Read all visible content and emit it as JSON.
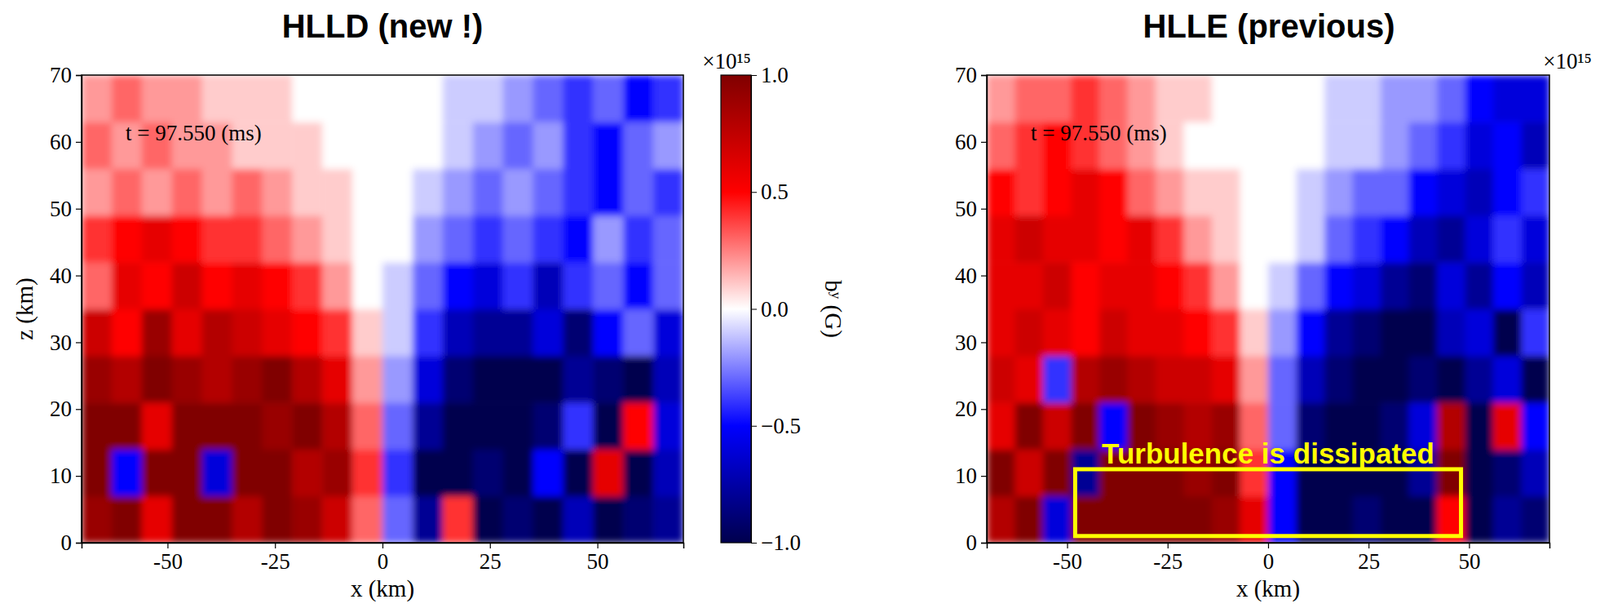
{
  "chart_data": [
    {
      "type": "heatmap",
      "title": "HLLD (new !)",
      "time_label": "t = 97.550 (ms)",
      "x_label": "x (km)",
      "y_label": "z (km)",
      "xlim": [
        -70,
        70
      ],
      "xticks": [
        -50,
        -25,
        0,
        25,
        50
      ],
      "ylim": [
        0,
        70
      ],
      "yticks": [
        0,
        10,
        20,
        30,
        40,
        50,
        60,
        70
      ],
      "x": [
        -66.5,
        -59.5,
        -52.5,
        -45.5,
        -38.5,
        -31.5,
        -24.5,
        -17.5,
        -10.5,
        -3.5,
        3.5,
        10.5,
        17.5,
        24.5,
        31.5,
        38.5,
        45.5,
        52.5,
        59.5,
        66.5
      ],
      "y": [
        3.5,
        10.5,
        17.5,
        24.5,
        31.5,
        38.5,
        45.5,
        52.5,
        59.5,
        66.5
      ],
      "cells": [
        [
          0.9,
          1.0,
          0.6,
          1.0,
          1.0,
          0.8,
          1.0,
          0.9,
          0.7,
          0.3,
          -0.3,
          -0.8,
          0.4,
          -1.0,
          -0.9,
          -1.0,
          -0.7,
          -1.0,
          -0.9,
          -0.8
        ],
        [
          1.0,
          -0.5,
          1.0,
          1.0,
          -0.6,
          1.0,
          1.0,
          0.8,
          0.9,
          0.4,
          -0.4,
          -1.0,
          -1.0,
          -0.9,
          -1.0,
          -0.5,
          -1.0,
          0.6,
          -1.0,
          -0.7
        ],
        [
          1.0,
          1.0,
          0.6,
          1.0,
          1.0,
          1.0,
          0.9,
          1.0,
          0.8,
          0.3,
          -0.3,
          -0.8,
          -1.0,
          -1.0,
          -1.0,
          -0.9,
          -0.4,
          -1.0,
          0.5,
          -0.6
        ],
        [
          0.9,
          0.8,
          1.0,
          0.9,
          0.8,
          0.9,
          1.0,
          0.8,
          0.6,
          0.2,
          -0.2,
          -0.6,
          -0.9,
          -1.0,
          -1.0,
          -1.0,
          -0.8,
          -0.9,
          -1.0,
          -0.7
        ],
        [
          0.7,
          0.5,
          0.9,
          0.6,
          0.8,
          0.7,
          0.6,
          0.5,
          0.4,
          0.1,
          -0.1,
          -0.4,
          -0.7,
          -0.8,
          -0.8,
          -0.6,
          -0.9,
          -0.5,
          -0.3,
          -0.6
        ],
        [
          0.3,
          0.6,
          0.5,
          0.7,
          0.5,
          0.6,
          0.5,
          0.4,
          0.2,
          0.0,
          -0.1,
          -0.3,
          -0.5,
          -0.6,
          -0.4,
          -0.7,
          -0.4,
          -0.3,
          -0.5,
          -0.3
        ],
        [
          0.4,
          0.5,
          0.6,
          0.5,
          0.4,
          0.4,
          0.3,
          0.2,
          0.1,
          0.0,
          0.0,
          -0.2,
          -0.3,
          -0.4,
          -0.3,
          -0.4,
          -0.5,
          -0.2,
          -0.4,
          -0.3
        ],
        [
          0.2,
          0.3,
          0.2,
          0.3,
          0.2,
          0.3,
          0.2,
          0.1,
          0.1,
          0.0,
          0.0,
          -0.1,
          -0.2,
          -0.3,
          -0.2,
          -0.3,
          -0.4,
          -0.5,
          -0.3,
          -0.4
        ],
        [
          0.3,
          0.2,
          0.3,
          0.2,
          0.2,
          0.1,
          0.1,
          0.1,
          0.0,
          0.0,
          0.0,
          0.0,
          -0.1,
          -0.2,
          -0.3,
          -0.2,
          -0.4,
          -0.5,
          -0.3,
          -0.2
        ],
        [
          0.2,
          0.3,
          0.2,
          0.2,
          0.1,
          0.1,
          0.1,
          0.0,
          0.0,
          0.0,
          0.0,
          0.0,
          -0.1,
          -0.1,
          -0.2,
          -0.3,
          -0.4,
          -0.3,
          -0.5,
          -0.4
        ]
      ],
      "colorbar": {
        "range": [
          -1,
          1
        ],
        "offset_label": "×10¹⁵",
        "label": "bʸ (G)",
        "ticks": [
          {
            "value": 1,
            "label": "1.0"
          },
          {
            "value": 0.5,
            "label": "0.5"
          },
          {
            "value": 0,
            "label": "0.0"
          },
          {
            "value": -0.5,
            "label": "−0.5"
          },
          {
            "value": -1,
            "label": "−1.0"
          }
        ]
      }
    },
    {
      "type": "heatmap",
      "title": "HLLE (previous)",
      "time_label": "t = 97.550 (ms)",
      "x_label": "x (km)",
      "xlim": [
        -70,
        70
      ],
      "xticks": [
        -50,
        -25,
        0,
        25,
        50
      ],
      "ylim": [
        0,
        70
      ],
      "yticks": [
        0,
        10,
        20,
        30,
        40,
        50,
        60,
        70
      ],
      "x": [
        -66.5,
        -59.5,
        -52.5,
        -45.5,
        -38.5,
        -31.5,
        -24.5,
        -17.5,
        -10.5,
        -3.5,
        3.5,
        10.5,
        17.5,
        24.5,
        31.5,
        38.5,
        45.5,
        52.5,
        59.5,
        66.5
      ],
      "y": [
        3.5,
        10.5,
        17.5,
        24.5,
        31.5,
        38.5,
        45.5,
        52.5,
        59.5,
        66.5
      ],
      "cells": [
        [
          0.8,
          1.0,
          -0.6,
          1.0,
          1.0,
          1.0,
          1.0,
          1.0,
          0.9,
          0.6,
          -0.5,
          -1.0,
          -1.0,
          -0.9,
          -1.0,
          -1.0,
          0.5,
          -1.0,
          -0.8,
          -0.9
        ],
        [
          1.0,
          0.7,
          1.0,
          -0.8,
          1.0,
          1.0,
          1.0,
          0.9,
          1.0,
          0.4,
          -0.5,
          -1.0,
          -1.0,
          -1.0,
          -1.0,
          -0.8,
          1.0,
          -1.0,
          -0.9,
          -0.7
        ],
        [
          0.6,
          1.0,
          0.7,
          1.0,
          -0.5,
          1.0,
          0.9,
          0.8,
          0.9,
          0.3,
          -0.3,
          -0.9,
          -1.0,
          -1.0,
          -0.9,
          -0.6,
          0.8,
          -1.0,
          0.6,
          -0.5
        ],
        [
          0.7,
          0.6,
          -0.4,
          0.8,
          0.9,
          0.8,
          0.7,
          0.7,
          0.6,
          0.2,
          -0.3,
          -0.7,
          -0.9,
          -1.0,
          -1.0,
          -0.9,
          -1.0,
          -0.8,
          -0.6,
          -1.0
        ],
        [
          0.6,
          0.7,
          0.6,
          0.5,
          0.7,
          0.6,
          0.6,
          0.5,
          0.4,
          0.1,
          -0.2,
          -0.5,
          -0.8,
          -0.9,
          -1.0,
          -1.0,
          -0.7,
          -0.6,
          -1.0,
          -0.4
        ],
        [
          0.6,
          0.6,
          0.7,
          0.5,
          0.6,
          0.6,
          0.5,
          0.4,
          0.2,
          0.0,
          -0.1,
          -0.3,
          -0.5,
          -0.6,
          -0.8,
          -0.9,
          -0.6,
          -0.8,
          -0.5,
          -0.7
        ],
        [
          0.6,
          0.7,
          0.6,
          0.6,
          0.5,
          0.6,
          0.4,
          0.2,
          0.1,
          0.0,
          0.0,
          -0.1,
          -0.3,
          -0.4,
          -0.5,
          -0.7,
          -0.8,
          -0.6,
          -0.4,
          -0.6
        ],
        [
          0.5,
          0.4,
          0.5,
          0.6,
          0.5,
          0.3,
          0.2,
          0.1,
          0.1,
          0.0,
          0.0,
          -0.1,
          -0.2,
          -0.3,
          -0.3,
          -0.5,
          -0.6,
          -0.7,
          -0.5,
          -0.4
        ],
        [
          0.3,
          0.4,
          0.5,
          0.4,
          0.3,
          0.2,
          0.1,
          0.0,
          0.0,
          0.0,
          0.0,
          0.0,
          -0.1,
          -0.1,
          -0.2,
          -0.3,
          -0.4,
          -0.6,
          -0.5,
          -0.7
        ],
        [
          0.2,
          0.3,
          0.3,
          0.4,
          0.3,
          0.2,
          0.1,
          0.1,
          0.0,
          0.0,
          0.0,
          0.0,
          -0.1,
          -0.1,
          -0.2,
          -0.2,
          -0.3,
          -0.5,
          -0.6,
          -0.6
        ]
      ],
      "colorbar": {
        "range": [
          -1,
          1
        ],
        "offset_label": "×10¹⁵"
      },
      "annotations": [
        {
          "text": "Turbulence is dissipated",
          "x0": -48,
          "x1": 48,
          "y0": 1,
          "y1": 11
        }
      ]
    }
  ]
}
